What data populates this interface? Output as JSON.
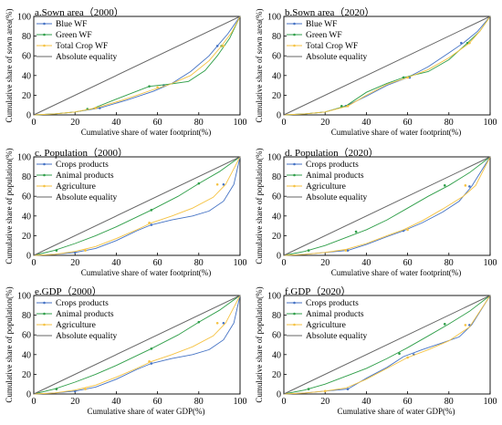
{
  "chart_data": [
    {
      "type": "line",
      "title": "a.Sown area（2000）",
      "xlabel": "Cumulative share of water footprint(%)",
      "ylabel": "Cumulative share of sown area(%)",
      "xlim": [
        0,
        100
      ],
      "ylim": [
        0,
        100
      ],
      "xticks": [
        "0",
        "20",
        "40",
        "60",
        "80",
        "100"
      ],
      "yticks": [
        "0",
        "20",
        "40",
        "60",
        "80",
        "100"
      ],
      "legend": "top-left",
      "series": [
        {
          "name": "Blue WF",
          "color": "#4472c4",
          "x": [
            0,
            10,
            20,
            32,
            45,
            58,
            67,
            76,
            85,
            89,
            94,
            100
          ],
          "y": [
            0,
            1,
            3,
            7,
            15,
            24,
            32,
            44,
            60,
            70,
            82,
            100
          ],
          "markers": [
            [
              32,
              7
            ],
            [
              63,
              30
            ],
            [
              89,
              70
            ]
          ]
        },
        {
          "name": "Green WF",
          "color": "#2e9e48",
          "x": [
            0,
            10,
            20,
            28,
            40,
            56,
            65,
            75,
            83,
            89,
            95,
            100
          ],
          "y": [
            0,
            1,
            3,
            6,
            16,
            29,
            31,
            34,
            45,
            60,
            78,
            100
          ],
          "markers": [
            [
              26,
              6
            ],
            [
              56,
              29
            ],
            [
              91,
              70
            ]
          ]
        },
        {
          "name": "Total Crop WF",
          "color": "#f5c242",
          "x": [
            0,
            10,
            20,
            30,
            43,
            57,
            66,
            76,
            85,
            91,
            96,
            100
          ],
          "y": [
            0,
            1,
            3,
            7,
            15,
            25,
            31,
            40,
            55,
            70,
            84,
            100
          ],
          "markers": [
            [
              30,
              7
            ],
            [
              60,
              28
            ],
            [
              92,
              70
            ]
          ]
        },
        {
          "name": "Absolute equality",
          "color": "#666666",
          "x": [
            0,
            100
          ],
          "y": [
            0,
            100
          ],
          "markers": []
        }
      ]
    },
    {
      "type": "line",
      "title": "b.Sown area（2020）",
      "xlabel": "Cumulative share of water footprint(%)",
      "ylabel": "Cumulative share of sown area(%)",
      "xlim": [
        0,
        100
      ],
      "ylim": [
        0,
        100
      ],
      "xticks": [
        "0",
        "20",
        "40",
        "60",
        "80",
        "100"
      ],
      "yticks": [
        "0",
        "20",
        "40",
        "60",
        "80",
        "100"
      ],
      "legend": "top-left",
      "series": [
        {
          "name": "Blue WF",
          "color": "#4472c4",
          "x": [
            0,
            10,
            20,
            30,
            40,
            50,
            60,
            70,
            80,
            87,
            94,
            100
          ],
          "y": [
            0,
            1,
            3,
            9,
            19,
            30,
            38,
            49,
            63,
            73,
            85,
            100
          ],
          "markers": [
            [
              30,
              9
            ],
            [
              61,
              38
            ],
            [
              86,
              73
            ]
          ]
        },
        {
          "name": "Green WF",
          "color": "#2e9e48",
          "x": [
            0,
            10,
            20,
            30,
            40,
            50,
            58,
            70,
            80,
            89,
            95,
            100
          ],
          "y": [
            0,
            1,
            3,
            9,
            23,
            32,
            38,
            44,
            56,
            73,
            85,
            100
          ],
          "markers": [
            [
              28,
              9
            ],
            [
              58,
              38
            ],
            [
              89,
              73
            ]
          ]
        },
        {
          "name": "Total Crop WF",
          "color": "#f5c242",
          "x": [
            0,
            10,
            20,
            31,
            40,
            50,
            60,
            70,
            80,
            90,
            95,
            100
          ],
          "y": [
            0,
            1,
            3,
            9,
            20,
            31,
            38,
            46,
            58,
            73,
            85,
            100
          ],
          "markers": [
            [
              31,
              9
            ],
            [
              60,
              38
            ],
            [
              90,
              73
            ]
          ]
        },
        {
          "name": "Absolute equality",
          "color": "#666666",
          "x": [
            0,
            100
          ],
          "y": [
            0,
            100
          ],
          "markers": []
        }
      ]
    },
    {
      "type": "line",
      "title": "c. Population（2000）",
      "xlabel": "Cumulative share of water footprint(%)",
      "ylabel": "Cumulative share of population(%)",
      "xlim": [
        0,
        100
      ],
      "ylim": [
        0,
        100
      ],
      "xticks": [
        "0",
        "20",
        "40",
        "60",
        "80",
        "100"
      ],
      "yticks": [
        "0",
        "20",
        "40",
        "60",
        "80",
        "100"
      ],
      "legend": "top-left",
      "series": [
        {
          "name": "Crops products",
          "color": "#4472c4",
          "x": [
            0,
            10,
            20,
            30,
            40,
            50,
            57,
            67,
            77,
            85,
            92,
            97,
            100
          ],
          "y": [
            0,
            1,
            3,
            7,
            15,
            25,
            31,
            36,
            40,
            45,
            55,
            72,
            100
          ],
          "markers": [
            [
              20,
              3
            ],
            [
              57,
              31
            ],
            [
              92,
              72
            ]
          ]
        },
        {
          "name": "Animal products",
          "color": "#2e9e48",
          "x": [
            0,
            10,
            20,
            30,
            40,
            57,
            70,
            80,
            90,
            100
          ],
          "y": [
            0,
            5,
            12,
            20,
            29,
            46,
            60,
            73,
            85,
            100
          ],
          "markers": [
            [
              11,
              5
            ],
            [
              57,
              46
            ],
            [
              80,
              73
            ]
          ]
        },
        {
          "name": "Agriculture",
          "color": "#f5c242",
          "x": [
            0,
            10,
            20,
            30,
            40,
            50,
            57,
            67,
            77,
            87,
            93,
            100
          ],
          "y": [
            0,
            1,
            4,
            9,
            17,
            26,
            33,
            40,
            48,
            59,
            72,
            100
          ],
          "markers": [
            [
              25,
              5
            ],
            [
              56,
              33
            ],
            [
              89,
              72
            ]
          ]
        },
        {
          "name": "Absolute equality",
          "color": "#666666",
          "x": [
            0,
            100
          ],
          "y": [
            0,
            100
          ],
          "markers": []
        }
      ]
    },
    {
      "type": "line",
      "title": "d. Population（2020）",
      "xlabel": "Cumulative share of water footprint(%)",
      "ylabel": "Cumulative share of population(%)",
      "xlim": [
        0,
        100
      ],
      "ylim": [
        0,
        100
      ],
      "xticks": [
        "0",
        "20",
        "40",
        "60",
        "80",
        "100"
      ],
      "yticks": [
        "0",
        "20",
        "40",
        "60",
        "80",
        "100"
      ],
      "legend": "top-left",
      "series": [
        {
          "name": "Crops products",
          "color": "#4472c4",
          "x": [
            0,
            10,
            20,
            31,
            40,
            50,
            58,
            67,
            77,
            85,
            91,
            100
          ],
          "y": [
            0,
            1,
            3,
            5,
            11,
            19,
            25,
            33,
            44,
            55,
            70,
            100
          ],
          "markers": [
            [
              31,
              5
            ],
            [
              58,
              25
            ],
            [
              90,
              70
            ]
          ]
        },
        {
          "name": "Animal products",
          "color": "#2e9e48",
          "x": [
            0,
            10,
            20,
            30,
            40,
            50,
            60,
            70,
            80,
            90,
            100
          ],
          "y": [
            0,
            4,
            10,
            18,
            26,
            36,
            48,
            60,
            71,
            84,
            100
          ],
          "markers": [
            [
              12,
              5
            ],
            [
              35,
              24
            ],
            [
              78,
              71
            ]
          ]
        },
        {
          "name": "Agriculture",
          "color": "#f5c242",
          "x": [
            0,
            10,
            20,
            30,
            40,
            50,
            58,
            67,
            77,
            87,
            93,
            100
          ],
          "y": [
            0,
            1,
            3,
            6,
            12,
            20,
            26,
            35,
            47,
            60,
            71,
            100
          ],
          "markers": [
            [
              30,
              5
            ],
            [
              60,
              26
            ],
            [
              88,
              71
            ]
          ]
        },
        {
          "name": "Absolute equality",
          "color": "#666666",
          "x": [
            0,
            100
          ],
          "y": [
            0,
            100
          ],
          "markers": []
        }
      ]
    },
    {
      "type": "line",
      "title": "e.GDP（2000）",
      "xlabel": "Cumulative share of water GDP(%)",
      "ylabel": "Cumulative share of population(%)",
      "xlim": [
        0,
        100
      ],
      "ylim": [
        0,
        100
      ],
      "xticks": [
        "0",
        "20",
        "40",
        "60",
        "80",
        "100"
      ],
      "yticks": [
        "0",
        "20",
        "40",
        "60",
        "80",
        "100"
      ],
      "legend": "top-left",
      "series": [
        {
          "name": "Crops products",
          "color": "#4472c4",
          "x": [
            0,
            10,
            20,
            30,
            40,
            50,
            57,
            67,
            77,
            85,
            92,
            97,
            100
          ],
          "y": [
            0,
            1,
            3,
            7,
            15,
            25,
            31,
            36,
            40,
            45,
            55,
            72,
            100
          ],
          "markers": [
            [
              20,
              3
            ],
            [
              57,
              31
            ],
            [
              92,
              72
            ]
          ]
        },
        {
          "name": "Animal products",
          "color": "#2e9e48",
          "x": [
            0,
            10,
            20,
            30,
            40,
            57,
            70,
            80,
            90,
            100
          ],
          "y": [
            0,
            5,
            12,
            20,
            29,
            46,
            60,
            73,
            85,
            100
          ],
          "markers": [
            [
              11,
              5
            ],
            [
              57,
              46
            ],
            [
              80,
              73
            ]
          ]
        },
        {
          "name": "Agriculture",
          "color": "#f5c242",
          "x": [
            0,
            10,
            20,
            30,
            40,
            50,
            57,
            67,
            77,
            87,
            93,
            100
          ],
          "y": [
            0,
            1,
            4,
            9,
            17,
            26,
            33,
            40,
            48,
            59,
            72,
            100
          ],
          "markers": [
            [
              25,
              5
            ],
            [
              56,
              33
            ],
            [
              89,
              72
            ]
          ]
        },
        {
          "name": "Absolute equality",
          "color": "#666666",
          "x": [
            0,
            100
          ],
          "y": [
            0,
            100
          ],
          "markers": []
        }
      ]
    },
    {
      "type": "line",
      "title": "f.GDP（2020）",
      "xlabel": "Cumulative share of water GDP(%)",
      "ylabel": "Cumulative share of population(%)",
      "xlim": [
        0,
        100
      ],
      "ylim": [
        0,
        100
      ],
      "xticks": [
        "0",
        "20",
        "40",
        "60",
        "80",
        "100"
      ],
      "yticks": [
        "0",
        "20",
        "40",
        "60",
        "80",
        "100"
      ],
      "legend": "top-left",
      "series": [
        {
          "name": "Crops products",
          "color": "#4472c4",
          "x": [
            0,
            10,
            20,
            31,
            40,
            50,
            58,
            67,
            77,
            85,
            91,
            100
          ],
          "y": [
            0,
            1,
            3,
            5,
            16,
            27,
            38,
            45,
            52,
            58,
            70,
            100
          ],
          "markers": [
            [
              31,
              5
            ],
            [
              63,
              40
            ],
            [
              90,
              70
            ]
          ]
        },
        {
          "name": "Animal products",
          "color": "#2e9e48",
          "x": [
            0,
            10,
            20,
            30,
            40,
            50,
            60,
            70,
            80,
            90,
            100
          ],
          "y": [
            0,
            4,
            10,
            18,
            26,
            36,
            47,
            59,
            71,
            84,
            100
          ],
          "markers": [
            [
              12,
              5
            ],
            [
              56,
              41
            ],
            [
              78,
              71
            ]
          ]
        },
        {
          "name": "Agriculture",
          "color": "#f5c242",
          "x": [
            0,
            10,
            20,
            30,
            40,
            50,
            60,
            70,
            80,
            90,
            100
          ],
          "y": [
            0,
            1,
            3,
            6,
            15,
            26,
            37,
            45,
            54,
            68,
            100
          ],
          "markers": [
            [
              20,
              3
            ],
            [
              60,
              37
            ],
            [
              88,
              70
            ]
          ]
        },
        {
          "name": "Absolute equality",
          "color": "#666666",
          "x": [
            0,
            100
          ],
          "y": [
            0,
            100
          ],
          "markers": []
        }
      ]
    }
  ]
}
